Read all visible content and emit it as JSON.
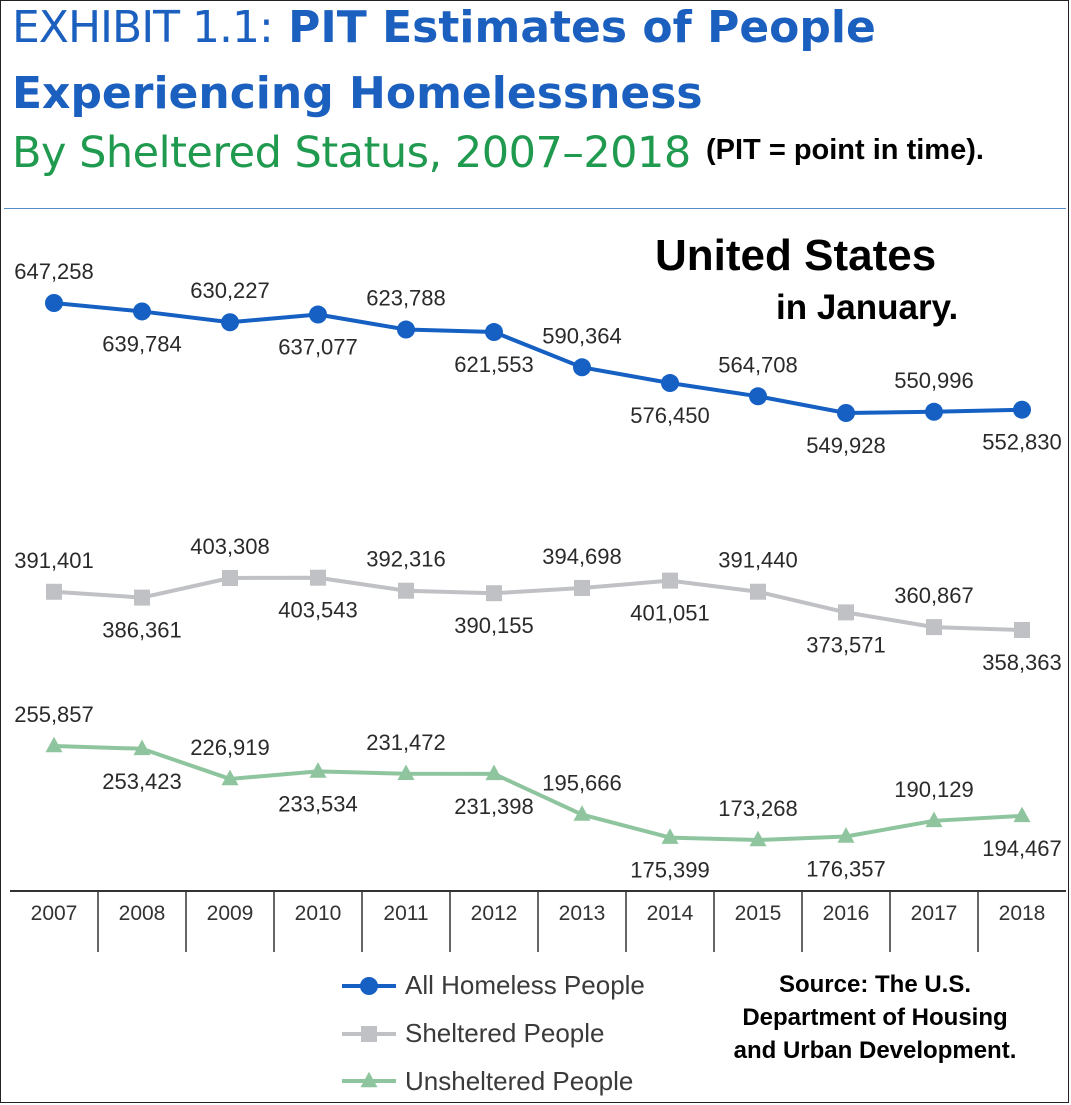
{
  "header": {
    "exhibit_prefix": "EXHIBIT 1.1:",
    "title_line1": "PIT Estimates of People",
    "title_line2": "Experiencing Homelessness",
    "subtitle": "By Sheltered Status, 2007–2018",
    "note": "(PIT = point in time)."
  },
  "annotations": {
    "region": "United States",
    "month": "in January."
  },
  "source": {
    "line1": "Source: The U.S.",
    "line2": "Department of Housing",
    "line3": "and Urban Development."
  },
  "colors": {
    "all": "#1560c2",
    "sheltered": "#bfc1c4",
    "unsheltered": "#8fc59e",
    "title_blue": "#1b5fbf",
    "subtitle_green": "#1f9a4e"
  },
  "chart_data": {
    "type": "line",
    "categories": [
      "2007",
      "2008",
      "2009",
      "2010",
      "2011",
      "2012",
      "2013",
      "2014",
      "2015",
      "2016",
      "2017",
      "2018"
    ],
    "series": [
      {
        "name": "All Homeless People",
        "marker": "circle",
        "values": [
          647258,
          639784,
          630227,
          637077,
          623788,
          621553,
          590364,
          576450,
          564708,
          549928,
          550996,
          552830
        ],
        "labels": [
          "647,258",
          "639,784",
          "630,227",
          "637,077",
          "623,788",
          "621,553",
          "590,364",
          "576,450",
          "564,708",
          "549,928",
          "550,996",
          "552,830"
        ]
      },
      {
        "name": "Sheltered People",
        "marker": "square",
        "values": [
          391401,
          386361,
          403308,
          403543,
          392316,
          390155,
          394698,
          401051,
          391440,
          373571,
          360867,
          358363
        ],
        "labels": [
          "391,401",
          "386,361",
          "403,308",
          "403,543",
          "392,316",
          "390,155",
          "394,698",
          "401,051",
          "391,440",
          "373,571",
          "360,867",
          "358,363"
        ]
      },
      {
        "name": "Unsheltered People",
        "marker": "triangle",
        "values": [
          255857,
          253423,
          226919,
          233534,
          231472,
          231398,
          195666,
          175399,
          173268,
          176357,
          190129,
          194467
        ],
        "labels": [
          "255,857",
          "253,423",
          "226,919",
          "233,534",
          "231,472",
          "231,398",
          "195,666",
          "175,399",
          "173,268",
          "176,357",
          "190,129",
          "194,467"
        ]
      }
    ],
    "title": "PIT Estimates of People Experiencing Homelessness",
    "subtitle": "By Sheltered Status, 2007–2018",
    "legend_position": "bottom-left",
    "grid": false
  }
}
